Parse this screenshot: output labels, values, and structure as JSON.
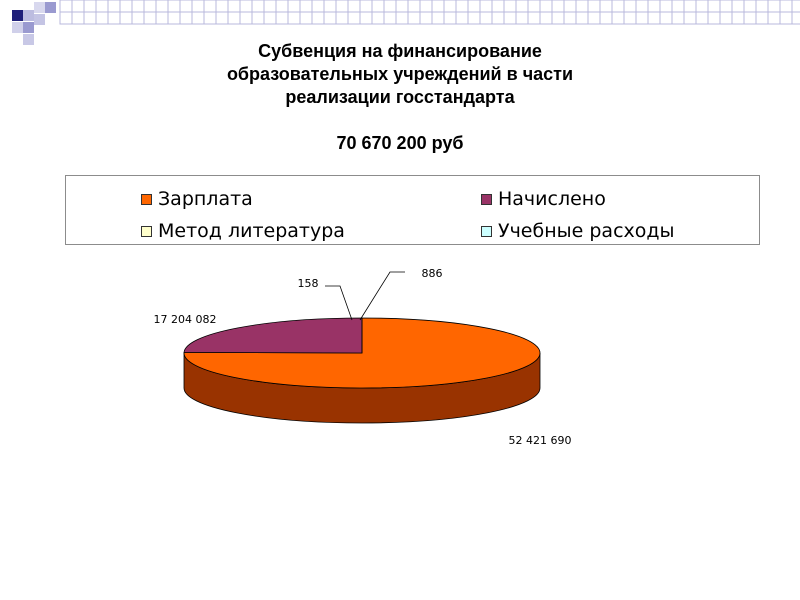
{
  "slide": {
    "title_lines": [
      "Субвенция  на финансирование",
      "образовательных учреждений в части",
      "реализации госстандарта"
    ],
    "subtitle": "70 670 200 руб"
  },
  "legend": {
    "items": [
      {
        "label": "Зарплата",
        "color": "#ff6600"
      },
      {
        "label": "Начислено",
        "color": "#993366"
      },
      {
        "label": "Метод литература",
        "color": "#ffffcc"
      },
      {
        "label": "Учебные расходы",
        "color": "#ccffff"
      }
    ]
  },
  "chart_data": {
    "type": "pie",
    "title": "Субвенция  на финансирование образовательных учреждений в части реализации госстандарта",
    "subtitle": "70 670 200 руб",
    "categories": [
      "Зарплата",
      "Начислено",
      "Метод литература",
      "Учебные расходы"
    ],
    "values": [
      52421690,
      17204082,
      158,
      886
    ],
    "data_labels": [
      "52 421 690",
      "17 204 082",
      "158",
      "886"
    ],
    "colors": [
      "#ff6600",
      "#993366",
      "#ffffcc",
      "#ccffff"
    ],
    "side_colors": [
      "#993300",
      "#66334d",
      "#cccc99",
      "#99cccc"
    ],
    "legend_position": "top",
    "style": "3d"
  }
}
